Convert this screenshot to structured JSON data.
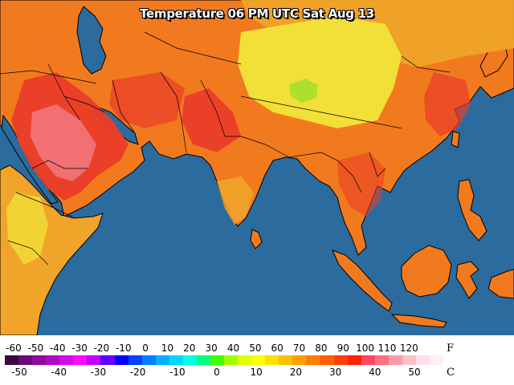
{
  "title": "Temperature 06 PM UTC Sat Aug 13",
  "colors": {
    "ocean": "#2b6b9e",
    "coast": "#000000",
    "cool_land": "#f0a52a",
    "warm_land": "#f27a1e",
    "hot_land": "#ea3e2a",
    "very_hot": "#f0707a",
    "highland_yellow": "#f2e53a",
    "highland_green": "#a8e62e"
  },
  "legend": {
    "f_unit": "F",
    "c_unit": "C",
    "f_ticks": [
      "-60",
      "-50",
      "-40",
      "-30",
      "-20",
      "-10",
      "0",
      "10",
      "20",
      "30",
      "40",
      "50",
      "60",
      "70",
      "80",
      "90",
      "100",
      "110",
      "120"
    ],
    "c_ticks": [
      "-50",
      "-40",
      "-30",
      "-20",
      "-10",
      "0",
      "10",
      "20",
      "30",
      "40",
      "50"
    ],
    "color_scale": [
      "#3a0a3a",
      "#6a0a7a",
      "#8e0a9e",
      "#b20ac2",
      "#d60ae6",
      "#fa0afa",
      "#c000ff",
      "#6000ff",
      "#0000ff",
      "#0040ff",
      "#0080ff",
      "#00b0ff",
      "#00d8ff",
      "#00ffe0",
      "#00ff80",
      "#40ff00",
      "#a0ff00",
      "#e0ff00",
      "#ffff00",
      "#ffe000",
      "#ffc000",
      "#ffa000",
      "#ff8000",
      "#ff6000",
      "#ff4000",
      "#ff2000",
      "#ff4860",
      "#ff7080",
      "#ff98a8",
      "#ffc0c8",
      "#ffe0e8",
      "#fff0f4"
    ]
  }
}
